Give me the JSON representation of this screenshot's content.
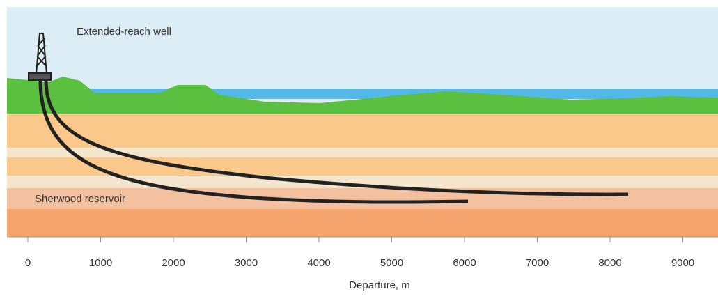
{
  "title": "Extended-reach well",
  "reservoir_label": "Sherwood reservoir",
  "axis": {
    "label": "Departure, m",
    "ticks": [
      0,
      1000,
      2000,
      3000,
      4000,
      5000,
      6000,
      7000,
      8000,
      9000
    ]
  }
}
